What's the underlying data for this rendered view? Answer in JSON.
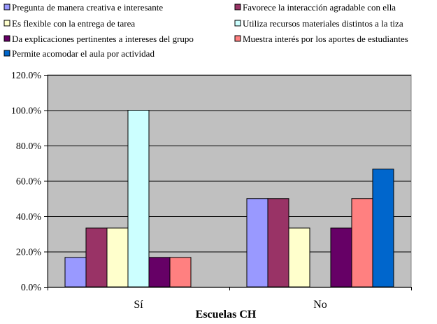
{
  "chart_data": {
    "type": "bar",
    "xlabel": "Escuelas CH",
    "ylabel": "",
    "categories": [
      "Sí",
      "No"
    ],
    "ylim": [
      0,
      120
    ],
    "yticks": [
      0,
      20,
      40,
      60,
      80,
      100,
      120
    ],
    "ytick_labels": [
      "0.0%",
      "20.0%",
      "40.0%",
      "60.0%",
      "80.0%",
      "100.0%",
      "120.0%"
    ],
    "grid": true,
    "legend_position": "top",
    "plot_background": "#c0c0c0",
    "series": [
      {
        "name": "Pregunta de manera creativa e interesante",
        "color": "#9999ff",
        "values": [
          16.7,
          50.0
        ]
      },
      {
        "name": "Favorece la interacción agradable con ella",
        "color": "#993366",
        "values": [
          33.3,
          50.0
        ]
      },
      {
        "name": "Es flexible con la entrega de tarea",
        "color": "#ffffcc",
        "values": [
          33.3,
          33.3
        ]
      },
      {
        "name": "Utiliza recursos materiales distintos a la tiza",
        "color": "#ccffff",
        "values": [
          100.0,
          0
        ]
      },
      {
        "name": "Da explicaciones pertinentes a intereses del grupo",
        "color": "#660066",
        "values": [
          16.7,
          33.3
        ]
      },
      {
        "name": "Muestra interés por los aportes de estudiantes",
        "color": "#ff8080",
        "values": [
          16.7,
          50.0
        ]
      },
      {
        "name": "Permite acomodar el aula por actividad",
        "color": "#0066cc",
        "values": [
          0,
          66.7
        ]
      }
    ]
  }
}
